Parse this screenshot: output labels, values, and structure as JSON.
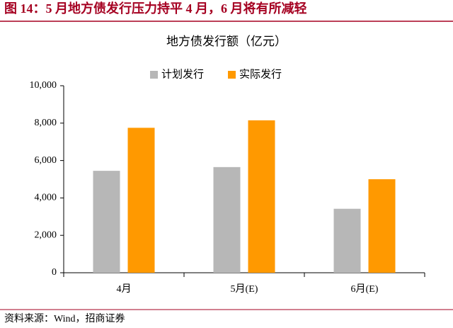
{
  "chart_data": {
    "type": "bar",
    "figure_title": "图 14：5 月地方债发行压力持平 4 月，6 月将有所减轻",
    "title": "地方债发行额（亿元）",
    "source": "资料来源：Wind，招商证券",
    "categories": [
      "4月",
      "5月(E)",
      "6月(E)"
    ],
    "series": [
      {
        "name": "计划发行",
        "color": "#b7b7b7",
        "values": [
          5450,
          5650,
          3420
        ]
      },
      {
        "name": "实际发行",
        "color": "#ff9900",
        "values": [
          7750,
          8150,
          5000
        ]
      }
    ],
    "ylim": [
      0,
      10000
    ],
    "yticks": [
      0,
      {
        "value": 2000,
        "label": "2,000"
      },
      {
        "value": 4000,
        "label": "4,000"
      },
      {
        "value": 6000,
        "label": "6,000"
      },
      {
        "value": 8000,
        "label": "8,000"
      },
      {
        "value": 10000,
        "label": "10,000"
      }
    ],
    "grid": false,
    "legend": "top"
  }
}
